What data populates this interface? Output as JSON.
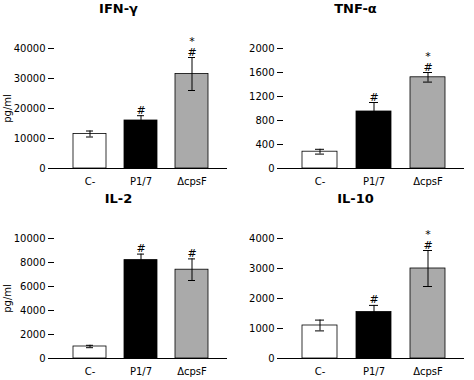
{
  "chart_data": [
    {
      "type": "bar",
      "title": "IFN-γ",
      "categories": [
        "C-",
        "P1/7",
        "ΔcpsF"
      ],
      "values": [
        11500,
        16000,
        31500
      ],
      "errors": [
        1000,
        1600,
        5500
      ],
      "colors": [
        "white",
        "black",
        "#aaaaaa"
      ],
      "ylim": [
        0,
        40000
      ],
      "yticks": [
        0,
        10000,
        20000,
        30000,
        40000
      ],
      "ylabel": "pg/ml",
      "grid": false,
      "annotations": [
        {
          "category": "P1/7",
          "symbols": [
            "#"
          ]
        },
        {
          "category": "ΔcpsF",
          "symbols": [
            "*",
            "#"
          ]
        }
      ]
    },
    {
      "type": "bar",
      "title": "TNF-α",
      "categories": [
        "C-",
        "P1/7",
        "ΔcpsF"
      ],
      "values": [
        280,
        950,
        1520
      ],
      "errors": [
        40,
        150,
        80
      ],
      "colors": [
        "white",
        "black",
        "#aaaaaa"
      ],
      "ylim": [
        0,
        2000
      ],
      "yticks": [
        0,
        400,
        800,
        1200,
        1600,
        2000
      ],
      "grid": false,
      "annotations": [
        {
          "category": "P1/7",
          "symbols": [
            "#"
          ]
        },
        {
          "category": "ΔcpsF",
          "symbols": [
            "*",
            "#"
          ]
        }
      ]
    },
    {
      "type": "bar",
      "title": "IL-2",
      "categories": [
        "C-",
        "P1/7",
        "ΔcpsF"
      ],
      "values": [
        1000,
        8200,
        7400
      ],
      "errors": [
        100,
        500,
        900
      ],
      "colors": [
        "white",
        "black",
        "#aaaaaa"
      ],
      "ylim": [
        0,
        10000
      ],
      "yticks": [
        0,
        2000,
        4000,
        6000,
        8000,
        10000
      ],
      "ylabel": "pg/ml",
      "grid": false,
      "annotations": [
        {
          "category": "P1/7",
          "symbols": [
            "#"
          ]
        },
        {
          "category": "ΔcpsF",
          "symbols": [
            "#"
          ]
        }
      ]
    },
    {
      "type": "bar",
      "title": "IL-10",
      "categories": [
        "C-",
        "P1/7",
        "ΔcpsF"
      ],
      "values": [
        1100,
        1550,
        3000
      ],
      "errors": [
        180,
        220,
        600
      ],
      "colors": [
        "white",
        "black",
        "#aaaaaa"
      ],
      "ylim": [
        0,
        4000
      ],
      "yticks": [
        0,
        1000,
        2000,
        3000,
        4000
      ],
      "grid": false,
      "annotations": [
        {
          "category": "P1/7",
          "symbols": [
            "#"
          ]
        },
        {
          "category": "ΔcpsF",
          "symbols": [
            "*",
            "#"
          ]
        }
      ]
    }
  ]
}
